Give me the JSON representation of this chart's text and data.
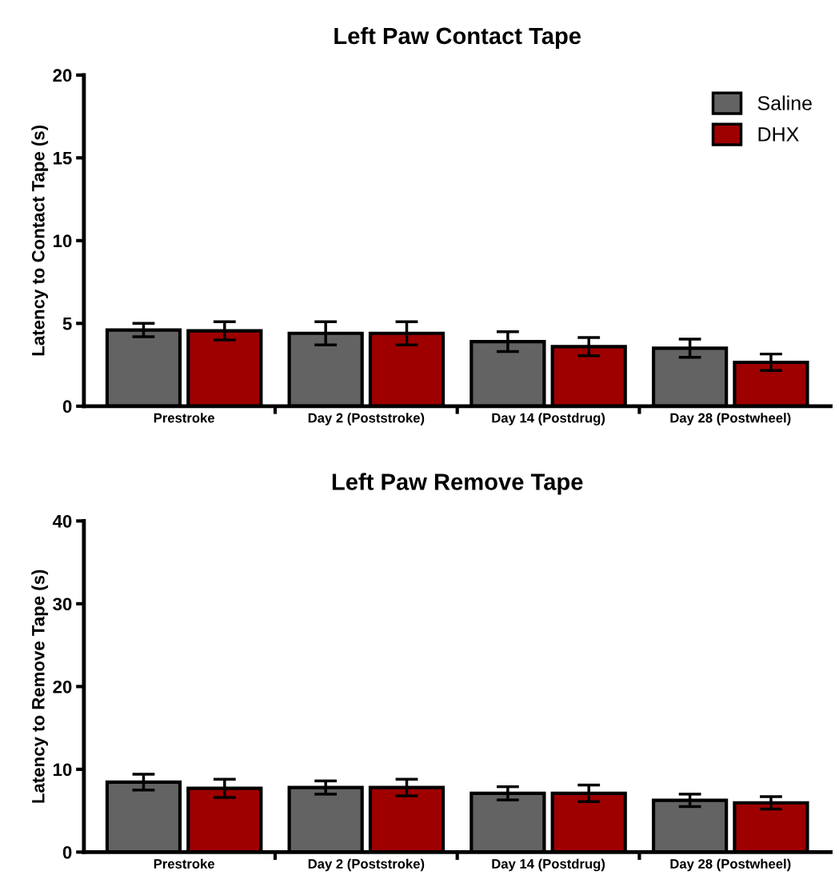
{
  "chart_data": [
    {
      "type": "bar",
      "title": "Left Paw Contact Tape",
      "ylabel": "Latency to Contact Tape (s)",
      "categories": [
        "Prestroke",
        "Day 2 (Poststroke)",
        "Day 14 (Postdrug)",
        "Day 28 (Postwheel)"
      ],
      "ylim": [
        0,
        20
      ],
      "yticks": [
        0,
        5,
        10,
        15,
        20
      ],
      "grid": false,
      "legend": "top right",
      "series": [
        {
          "name": "Saline",
          "color": "#636363",
          "values": [
            4.6,
            4.4,
            3.9,
            3.5
          ],
          "errors": [
            0.4,
            0.7,
            0.6,
            0.55
          ]
        },
        {
          "name": "DHX",
          "color": "#9e0000",
          "values": [
            4.55,
            4.4,
            3.6,
            2.65
          ],
          "errors": [
            0.55,
            0.7,
            0.55,
            0.5
          ]
        }
      ]
    },
    {
      "type": "bar",
      "title": "Left Paw Remove Tape",
      "ylabel": "Latency to Remove Tape (s)",
      "categories": [
        "Prestroke",
        "Day 2 (Poststroke)",
        "Day 14 (Postdrug)",
        "Day 28 (Postwheel)"
      ],
      "ylim": [
        0,
        40
      ],
      "yticks": [
        0,
        10,
        20,
        30,
        40
      ],
      "grid": false,
      "legend": false,
      "series": [
        {
          "color": "#636363",
          "values": [
            8.45,
            7.8,
            7.1,
            6.25
          ],
          "errors": [
            0.95,
            0.8,
            0.8,
            0.75
          ]
        },
        {
          "color": "#9e0000",
          "values": [
            7.7,
            7.8,
            7.1,
            5.95
          ],
          "errors": [
            1.1,
            1.0,
            1.0,
            0.75
          ]
        }
      ]
    }
  ]
}
